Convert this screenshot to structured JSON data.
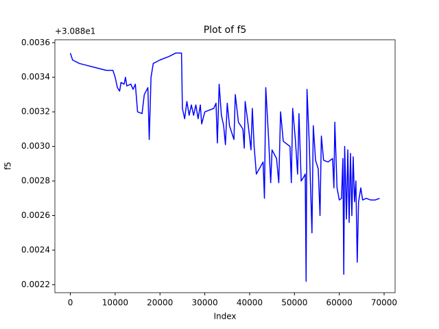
{
  "chart_data": {
    "type": "line",
    "title": "Plot of f5",
    "x_label": "Index",
    "y_label": "f5",
    "offset_text": "+3.088e1",
    "x": [
      0,
      500,
      2000,
      5000,
      8000,
      9500,
      10000,
      10500,
      11000,
      11300,
      12000,
      12300,
      12600,
      13500,
      14000,
      14500,
      15000,
      16000,
      16500,
      17300,
      17600,
      18000,
      18500,
      20000,
      22000,
      23500,
      24800,
      25000,
      25500,
      26000,
      26500,
      27000,
      27500,
      28000,
      28500,
      29000,
      29300,
      30000,
      32000,
      32500,
      32800,
      33200,
      33700,
      34200,
      34600,
      35000,
      35500,
      36500,
      36800,
      37500,
      38500,
      38800,
      39000,
      39700,
      40300,
      40600,
      41000,
      41500,
      43000,
      43300,
      43600,
      44200,
      44700,
      45000,
      46000,
      46500,
      46900,
      47500,
      49000,
      49300,
      49600,
      50200,
      50700,
      51000,
      51500,
      52000,
      52400,
      52600,
      52800,
      53300,
      53900,
      54200,
      54700,
      55300,
      55700,
      56000,
      56500,
      57500,
      58500,
      58800,
      59000,
      59500,
      60000,
      60500,
      60800,
      61000,
      61200,
      61600,
      61900,
      62200,
      62500,
      62800,
      63100,
      63400,
      63700,
      64000,
      64300,
      64800,
      65200,
      66000,
      67000,
      68000,
      69000
    ],
    "series": [
      {
        "name": "f5",
        "color": "#0000ff",
        "values": [
          0.00354,
          0.0035,
          0.00348,
          0.00346,
          0.00344,
          0.00344,
          0.0034,
          0.00334,
          0.00332,
          0.00337,
          0.00336,
          0.0034,
          0.00335,
          0.00336,
          0.00333,
          0.00336,
          0.0032,
          0.00319,
          0.0033,
          0.00334,
          0.00304,
          0.0034,
          0.00348,
          0.0035,
          0.00352,
          0.00354,
          0.00354,
          0.00322,
          0.00316,
          0.00326,
          0.00318,
          0.00324,
          0.00318,
          0.00324,
          0.00316,
          0.00324,
          0.00313,
          0.0032,
          0.00322,
          0.00325,
          0.00302,
          0.00336,
          0.00318,
          0.00312,
          0.00301,
          0.00325,
          0.00312,
          0.00304,
          0.0033,
          0.00314,
          0.0031,
          0.00299,
          0.00326,
          0.00312,
          0.00298,
          0.00322,
          0.003,
          0.00284,
          0.00291,
          0.0027,
          0.00334,
          0.00306,
          0.00279,
          0.00298,
          0.00293,
          0.00279,
          0.0032,
          0.00303,
          0.003,
          0.00279,
          0.00322,
          0.00304,
          0.00284,
          0.00319,
          0.0028,
          0.00282,
          0.00284,
          0.00222,
          0.00333,
          0.00302,
          0.0025,
          0.00312,
          0.00292,
          0.00287,
          0.0026,
          0.00306,
          0.00292,
          0.00291,
          0.00293,
          0.00276,
          0.00314,
          0.00276,
          0.00269,
          0.0027,
          0.00293,
          0.00226,
          0.003,
          0.00258,
          0.00298,
          0.00256,
          0.00296,
          0.0026,
          0.00294,
          0.00268,
          0.0028,
          0.00233,
          0.00268,
          0.00276,
          0.00269,
          0.0027,
          0.00269,
          0.00269,
          0.0027
        ]
      }
    ],
    "xlim": [
      -3450,
      72450
    ],
    "ylim": [
      0.002154,
      0.003617
    ],
    "xticks": [
      0,
      10000,
      20000,
      30000,
      40000,
      50000,
      60000,
      70000
    ],
    "yticks": [
      {
        "value": 0.0022,
        "label": "0.0022"
      },
      {
        "value": 0.0024,
        "label": "0.0024"
      },
      {
        "value": 0.0026,
        "label": "0.0026"
      },
      {
        "value": 0.0028,
        "label": "0.0028"
      },
      {
        "value": 0.003,
        "label": "0.0030"
      },
      {
        "value": 0.0032,
        "label": "0.0032"
      },
      {
        "value": 0.0034,
        "label": "0.0034"
      },
      {
        "value": 0.0036,
        "label": "0.0036"
      }
    ]
  }
}
